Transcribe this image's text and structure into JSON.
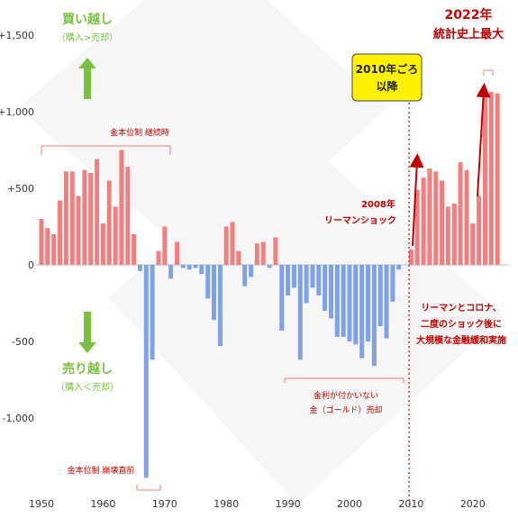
{
  "chart_data": {
    "type": "bar",
    "title": "",
    "xlabel": "",
    "ylabel": "",
    "ylim": [
      -1400,
      1550
    ],
    "xlim": [
      1949.5,
      2025.5
    ],
    "y_ticks": [
      {
        "value": 1500,
        "label": "+1,500"
      },
      {
        "value": 1000,
        "label": "+1,000"
      },
      {
        "value": 500,
        "label": "+500"
      },
      {
        "value": 0,
        "label": "0"
      },
      {
        "value": -500,
        "label": "-500"
      },
      {
        "value": -1000,
        "label": "-1,000"
      }
    ],
    "x_ticks": [
      1950,
      1960,
      1970,
      1980,
      1990,
      2000,
      2010,
      2020
    ],
    "grid": false,
    "colors": {
      "positive": "#f07f80",
      "negative": "#7fa1e6",
      "accent": "#c00000",
      "green": "#7ac143"
    },
    "series": [
      {
        "values": [
          {
            "x": 1950,
            "y": 300
          },
          {
            "x": 1951,
            "y": 240
          },
          {
            "x": 1952,
            "y": 200
          },
          {
            "x": 1953,
            "y": 420
          },
          {
            "x": 1954,
            "y": 610
          },
          {
            "x": 1955,
            "y": 610
          },
          {
            "x": 1956,
            "y": 450
          },
          {
            "x": 1957,
            "y": 620
          },
          {
            "x": 1958,
            "y": 600
          },
          {
            "x": 1959,
            "y": 690
          },
          {
            "x": 1960,
            "y": 270
          },
          {
            "x": 1961,
            "y": 550
          },
          {
            "x": 1962,
            "y": 380
          },
          {
            "x": 1963,
            "y": 750
          },
          {
            "x": 1964,
            "y": 640
          },
          {
            "x": 1965,
            "y": 200
          },
          {
            "x": 1966,
            "y": -40
          },
          {
            "x": 1967,
            "y": -1390
          },
          {
            "x": 1968,
            "y": -620
          },
          {
            "x": 1969,
            "y": 90
          },
          {
            "x": 1970,
            "y": 250
          },
          {
            "x": 1971,
            "y": -90
          },
          {
            "x": 1972,
            "y": 150
          },
          {
            "x": 1973,
            "y": -20
          },
          {
            "x": 1974,
            "y": -30
          },
          {
            "x": 1975,
            "y": -20
          },
          {
            "x": 1976,
            "y": -60
          },
          {
            "x": 1977,
            "y": -220
          },
          {
            "x": 1978,
            "y": -360
          },
          {
            "x": 1979,
            "y": -530
          },
          {
            "x": 1980,
            "y": 250
          },
          {
            "x": 1981,
            "y": 280
          },
          {
            "x": 1982,
            "y": 90
          },
          {
            "x": 1983,
            "y": -140
          },
          {
            "x": 1984,
            "y": -80
          },
          {
            "x": 1985,
            "y": 140
          },
          {
            "x": 1986,
            "y": 150
          },
          {
            "x": 1987,
            "y": -20
          },
          {
            "x": 1988,
            "y": 180
          },
          {
            "x": 1989,
            "y": -430
          },
          {
            "x": 1990,
            "y": -200
          },
          {
            "x": 1991,
            "y": -150
          },
          {
            "x": 1992,
            "y": -620
          },
          {
            "x": 1993,
            "y": -250
          },
          {
            "x": 1994,
            "y": -150
          },
          {
            "x": 1995,
            "y": -200
          },
          {
            "x": 1996,
            "y": -300
          },
          {
            "x": 1997,
            "y": -350
          },
          {
            "x": 1998,
            "y": -470
          },
          {
            "x": 1999,
            "y": -470
          },
          {
            "x": 2000,
            "y": -500
          },
          {
            "x": 2001,
            "y": -520
          },
          {
            "x": 2002,
            "y": -610
          },
          {
            "x": 2003,
            "y": -500
          },
          {
            "x": 2004,
            "y": -660
          },
          {
            "x": 2005,
            "y": -400
          },
          {
            "x": 2006,
            "y": -480
          },
          {
            "x": 2007,
            "y": -240
          },
          {
            "x": 2008,
            "y": -30
          },
          {
            "x": 2010,
            "y": 100
          },
          {
            "x": 2011,
            "y": 490
          },
          {
            "x": 2012,
            "y": 570
          },
          {
            "x": 2013,
            "y": 630
          },
          {
            "x": 2014,
            "y": 610
          },
          {
            "x": 2015,
            "y": 550
          },
          {
            "x": 2016,
            "y": 380
          },
          {
            "x": 2017,
            "y": 400
          },
          {
            "x": 2018,
            "y": 670
          },
          {
            "x": 2019,
            "y": 620
          },
          {
            "x": 2020,
            "y": 270
          },
          {
            "x": 2021,
            "y": 450
          },
          {
            "x": 2022,
            "y": 1140
          },
          {
            "x": 2023,
            "y": 1130
          },
          {
            "x": 2024,
            "y": 1120
          }
        ]
      }
    ],
    "annotations": {
      "buy_title": "買い越し",
      "buy_sub": "（購入>売却）",
      "sell_title": "売り越し",
      "sell_sub": "（購入＜売却）",
      "gold_standard_continued": "金本位制 継続時",
      "gold_standard_collapse": "金本位制 崩壊直前",
      "gold_sold_line1": "金利が付かいない",
      "gold_sold_line2": "金（ゴールド）売却",
      "since_2010_line1": "2010年ごろ",
      "since_2010_line2": "以降",
      "record_line1": "2022年",
      "record_line2": "統計史上最大",
      "lehman_line1": "2008年",
      "lehman_line2": "リーマンショック",
      "easing_line1": "リーマンとコロナ、",
      "easing_line2": "二度のショック後に",
      "easing_line3": "大規模な金融緩和実施"
    }
  }
}
